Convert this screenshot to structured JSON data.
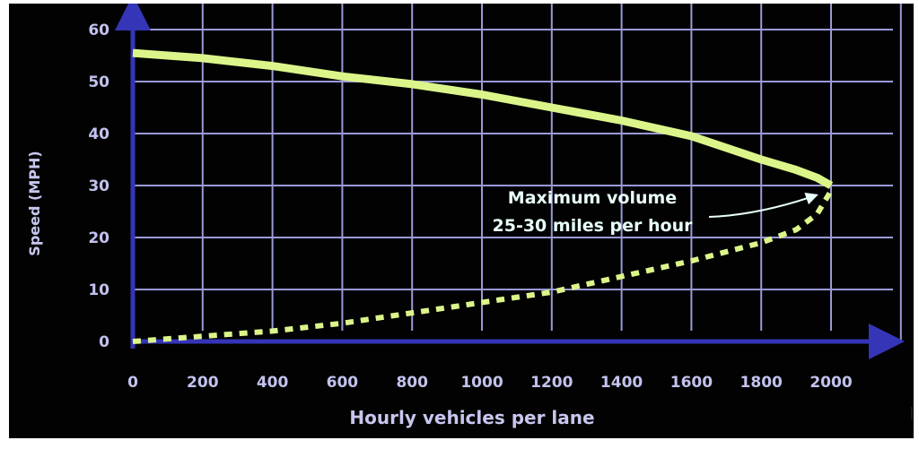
{
  "chart_data": {
    "type": "line",
    "title": "",
    "xlabel": "Hourly vehicles per lane",
    "ylabel": "Speed (MPH)",
    "xlim": [
      0,
      2000
    ],
    "ylim": [
      0,
      60
    ],
    "x_ticks": [
      "0",
      "200",
      "400",
      "600",
      "800",
      "1000",
      "1200",
      "1400",
      "1600",
      "1800",
      "2000"
    ],
    "y_ticks": [
      "0",
      "10",
      "20",
      "30",
      "40",
      "50",
      "60"
    ],
    "grid": true,
    "series": [
      {
        "style": "solid",
        "color": "#dcf58a",
        "x": [
          0,
          200,
          400,
          600,
          800,
          1000,
          1200,
          1400,
          1600,
          1800,
          1900,
          1960,
          2000
        ],
        "y": [
          55.5,
          54.5,
          53,
          51,
          49.5,
          47.5,
          45,
          42.5,
          39.5,
          35,
          33,
          31.5,
          30
        ]
      },
      {
        "style": "dotted",
        "color": "#dcf58a",
        "x": [
          0,
          200,
          400,
          600,
          800,
          1000,
          1200,
          1400,
          1600,
          1800,
          1900,
          1960,
          2000
        ],
        "y": [
          0,
          1,
          2,
          3.5,
          5.5,
          7.5,
          9.5,
          12.5,
          15.5,
          19,
          21.5,
          24.5,
          29
        ]
      }
    ],
    "annotations": [
      {
        "text_lines": [
          "Maximum volume",
          "25-30 miles per hour"
        ],
        "points_to": [
          2000,
          28.5
        ]
      }
    ]
  },
  "colors": {
    "background": "#020202",
    "axis": "#3535b8",
    "grid": "#9a9ad6",
    "tick_label": "#c2c2ee",
    "axis_label": "#c6c6ee",
    "curve": "#dcf58a",
    "annotation": "#e8fffa"
  }
}
